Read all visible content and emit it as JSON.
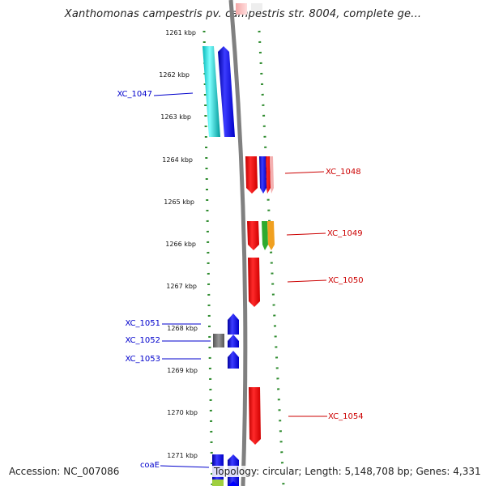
{
  "title": "Xanthomonas campestris pv. campestris str. 8004, complete ge...",
  "kbp_labels": [
    "1261 kbp",
    "1262 kbp",
    "1263 kbp",
    "1264 kbp",
    "1265 kbp",
    "1266 kbp",
    "1267 kbp",
    "1268 kbp",
    "1269 kbp",
    "1270 kbp",
    "1271 kbp"
  ],
  "left_genes": [
    "XC_1047",
    "XC_1051",
    "XC_1052",
    "XC_1053",
    "coaE"
  ],
  "right_genes": [
    "XC_1048",
    "XC_1049",
    "XC_1050",
    "XC_1054"
  ],
  "colors": {
    "left_label": "#0000cc",
    "right_label": "#cc0000",
    "track": "#808080",
    "dots": "#2e8b2e"
  },
  "footer": {
    "accession": "Accession: NC_007086",
    "info": "Topology: circular; Length: 5,148,708 bp; Genes: 4,331"
  }
}
